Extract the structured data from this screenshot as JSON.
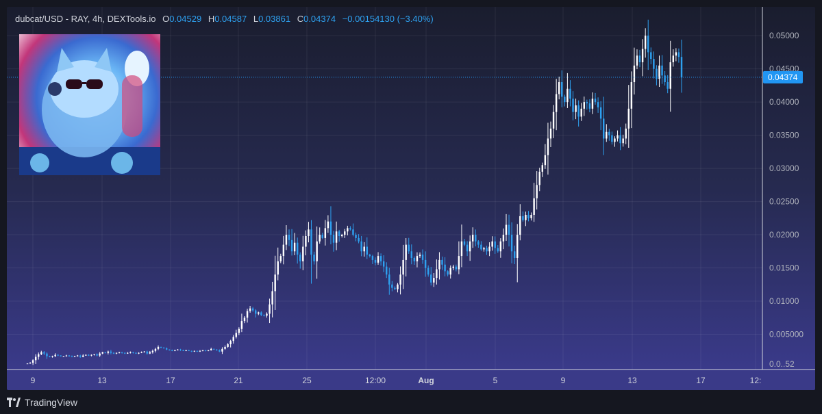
{
  "legend": {
    "symbol": "dubcat/USD - RAY, 4h, DEXTools.io",
    "open_label": "O",
    "open": "0.04529",
    "high_label": "H",
    "high": "0.04587",
    "low_label": "L",
    "low": "0.03861",
    "close_label": "C",
    "close": "0.04374",
    "change": "−0.00154130 (−3.40%)"
  },
  "footer": {
    "brand": "TradingView"
  },
  "colors": {
    "up": "#ffffff",
    "down": "#2ea1f0",
    "last_price_bg": "#2196f3"
  },
  "chart_data": {
    "type": "candlestick",
    "y_ticks": [
      "0.05000",
      "0.04500",
      "0.04000",
      "0.03500",
      "0.03000",
      "0.02500",
      "0.02000",
      "0.01500",
      "0.01000",
      "0.005000",
      "0.0..52"
    ],
    "x_ticks": [
      "9",
      "13",
      "17",
      "21",
      "25",
      "12:00",
      "Aug",
      "5",
      "9",
      "13",
      "17",
      "12:"
    ],
    "ylim": [
      0.0,
      0.0528
    ],
    "last_price_label": "0.04374",
    "close_series": [
      0.0006,
      0.0007,
      0.0011,
      0.0016,
      0.002,
      0.0023,
      0.0021,
      0.0017,
      0.0016,
      0.0017,
      0.0019,
      0.0018,
      0.0017,
      0.0017,
      0.0018,
      0.0017,
      0.0016,
      0.0017,
      0.0018,
      0.0016,
      0.0018,
      0.0019,
      0.0018,
      0.0019,
      0.002,
      0.0018,
      0.0021,
      0.0023,
      0.0022,
      0.0024,
      0.0022,
      0.0021,
      0.0022,
      0.0023,
      0.0022,
      0.0021,
      0.0022,
      0.0023,
      0.0022,
      0.0021,
      0.0022,
      0.0023,
      0.0024,
      0.0021,
      0.0023,
      0.0025,
      0.0028,
      0.0031,
      0.003,
      0.0029,
      0.0027,
      0.0026,
      0.0025,
      0.0026,
      0.0027,
      0.0026,
      0.0025,
      0.0026,
      0.0025,
      0.0024,
      0.0025,
      0.0024,
      0.0025,
      0.0026,
      0.0025,
      0.0026,
      0.0028,
      0.0027,
      0.0026,
      0.0024,
      0.0028,
      0.0031,
      0.0035,
      0.004,
      0.0046,
      0.0052,
      0.0058,
      0.007,
      0.0075,
      0.0085,
      0.0089,
      0.0086,
      0.0081,
      0.0083,
      0.0079,
      0.0078,
      0.0081,
      0.0095,
      0.0115,
      0.014,
      0.016,
      0.0168,
      0.0185,
      0.02,
      0.0192,
      0.0175,
      0.0188,
      0.017,
      0.016,
      0.0182,
      0.0198,
      0.0208,
      0.017,
      0.016,
      0.019,
      0.02,
      0.0195,
      0.021,
      0.022,
      0.02,
      0.0188,
      0.0205,
      0.0198,
      0.02,
      0.0205,
      0.021,
      0.0208,
      0.02,
      0.0195,
      0.019,
      0.0175,
      0.0182,
      0.017,
      0.0168,
      0.0162,
      0.0158,
      0.0168,
      0.016,
      0.0152,
      0.014,
      0.0125,
      0.012,
      0.0118,
      0.0125,
      0.014,
      0.0162,
      0.0185,
      0.0175,
      0.0165,
      0.016,
      0.0168,
      0.017,
      0.0162,
      0.015,
      0.014,
      0.0128,
      0.0135,
      0.0148,
      0.0162,
      0.0155,
      0.0145,
      0.014,
      0.015,
      0.0152,
      0.0148,
      0.0168,
      0.019,
      0.0185,
      0.0175,
      0.019,
      0.02,
      0.019,
      0.0185,
      0.0178,
      0.018,
      0.0175,
      0.0182,
      0.019,
      0.018,
      0.0175,
      0.019,
      0.02,
      0.0215,
      0.02,
      0.0175,
      0.0165,
      0.02,
      0.0228,
      0.0222,
      0.023,
      0.0225,
      0.023,
      0.0255,
      0.0275,
      0.0295,
      0.0305,
      0.032,
      0.0345,
      0.036,
      0.0385,
      0.0412,
      0.043,
      0.0408,
      0.04,
      0.042,
      0.0405,
      0.0385,
      0.0395,
      0.0378,
      0.039,
      0.04,
      0.0398,
      0.039,
      0.0405,
      0.04,
      0.0392,
      0.0375,
      0.0345,
      0.0355,
      0.035,
      0.034,
      0.0345,
      0.035,
      0.0338,
      0.0345,
      0.036,
      0.039,
      0.043,
      0.0455,
      0.047,
      0.046,
      0.048,
      0.05,
      0.0475,
      0.0465,
      0.045,
      0.0435,
      0.0455,
      0.044,
      0.043,
      0.042,
      0.046,
      0.047,
      0.0475,
      0.0468,
      0.0437
    ]
  }
}
